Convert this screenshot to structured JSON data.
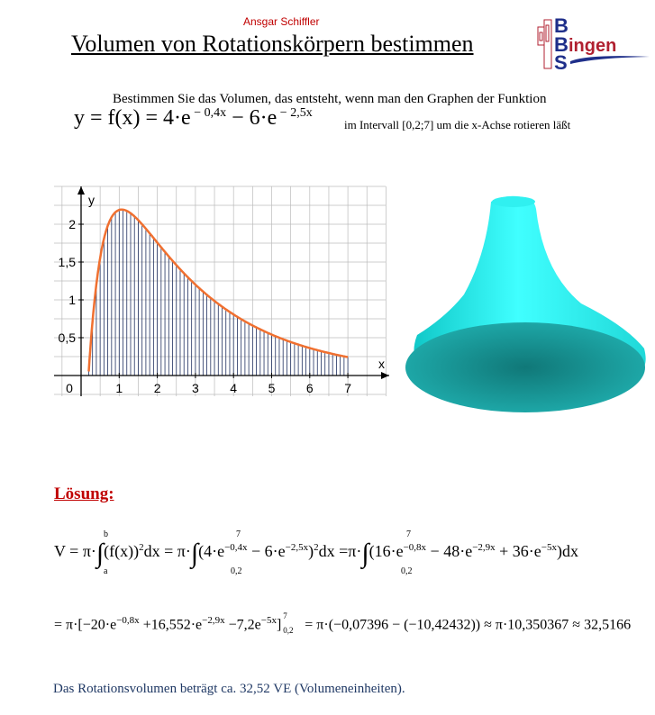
{
  "header": {
    "author": "Ansgar Schiffler",
    "title": "Volumen von Rotationskörpern bestimmen",
    "logo": {
      "letters": [
        "B",
        "B",
        "S"
      ],
      "text": "ingen",
      "colors": {
        "blue": "#1f2f8a",
        "red": "#b02030"
      }
    }
  },
  "task": {
    "intro": "Bestimmen Sie das Volumen, das entsteht, wenn man den Graphen der Funktion",
    "function_lhs": "y = f(x) = 4·e",
    "exp1": " − 0,4x",
    "mid": "  − 6·e",
    "exp2": " − 2,5x",
    "interval_text": "im Intervall [0,2;7] um die x-Achse rotieren läßt"
  },
  "graph": {
    "x_label": "x",
    "y_label": "y",
    "x_ticks": [
      "0",
      "1",
      "2",
      "3",
      "4",
      "5",
      "6",
      "7"
    ],
    "y_ticks": [
      "0,5",
      "1",
      "1,5",
      "2"
    ],
    "curve_color": "#f07030",
    "fill_line_color": "#203060",
    "interval": [
      0.2,
      7
    ]
  },
  "solid": {
    "color": "#20e0e0"
  },
  "solution": {
    "heading": "Lösung:",
    "line1": {
      "a": "V = π·",
      "lim_b": "b",
      "lim_a": "a",
      "b": "(f(x))",
      "b_sup": "2",
      "c": "dx = π·",
      "lim7": "7",
      "lim02": "0,2",
      "d": "(4·e",
      "d_sup": "−0,4x",
      "e": " − 6·e",
      "e_sup": "−2,5x",
      "f": ")",
      "f_sup": "2",
      "g": "dx =π·",
      "h": "(16·e",
      "h_sup": "−0,8x",
      "i": " − 48·e",
      "i_sup": "−2,9x",
      "j": " + 36·e",
      "j_sup": "−5x",
      "k": ")dx"
    },
    "line2": {
      "a": "= π·[−20·e",
      "a_sup": "−0,8x",
      "b": " +16,552·e",
      "b_sup": "−2,9x",
      "c": " −7,2e",
      "c_sup": "−5x",
      "d": "]",
      "d_top": "7",
      "d_bot": "0,2",
      "e": " = π·(−0,07396 − (−10,42432)) ≈ π·10,350367 ≈ 32,5166"
    },
    "result": "Das Rotationsvolumen beträgt ca. 32,52 VE (Volumeneinheiten)."
  }
}
